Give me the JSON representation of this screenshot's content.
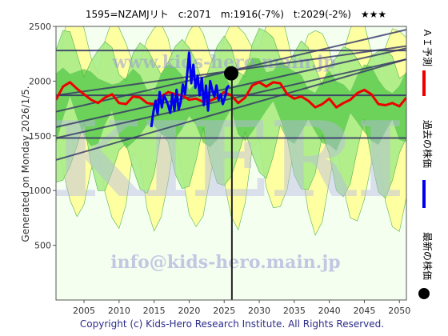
{
  "header": {
    "title": "1595=NZAMJリト　c:2071　m:1916(-7%)　t:2029(-2%)　★★★"
  },
  "side": {
    "generated": "Generated on Monday 2026/1/5."
  },
  "legend": {
    "ai_forecast": "ＡＩ予測",
    "past_price": "過去の株価",
    "latest_price": "最新の株価"
  },
  "watermark": {
    "big": "KIERI",
    "top": "www.kids-hero.main.jp",
    "bottom": "info@kids-hero.main.jp"
  },
  "footer": {
    "copyright": "Copyright (c) Kids-Hero Research Institute. All Rights Reserved."
  },
  "colors": {
    "forecast": "#ee0000",
    "past": "#0000ee",
    "green_band": "#33bb33",
    "light_green": "#aaee88",
    "yellow": "#ffff99",
    "trend_lines": "#333366",
    "plot_bg": "#e8fce0"
  },
  "chart_data": {
    "type": "line",
    "x_range": [
      2001,
      2051
    ],
    "y_range": [
      0,
      2500
    ],
    "x_ticks": [
      2005,
      2010,
      2015,
      2020,
      2025,
      2030,
      2035,
      2040,
      2045,
      2050
    ],
    "y_ticks": [
      500,
      1000,
      1500,
      2000,
      2500
    ],
    "grid": false,
    "current_marker": {
      "x": 2026.0,
      "y": 2071
    },
    "current_vline_x": 2026.1,
    "horizontal_levels": [
      1480,
      1870,
      2280
    ],
    "trend_lines": [
      {
        "x": [
          2001,
          2051
        ],
        "y": [
          1280,
          2200
        ]
      },
      {
        "x": [
          2001,
          2051
        ],
        "y": [
          1480,
          2200
        ]
      },
      {
        "x": [
          2001,
          2051
        ],
        "y": [
          1580,
          2300
        ]
      },
      {
        "x": [
          2001,
          2051
        ],
        "y": [
          1720,
          2470
        ]
      },
      {
        "x": [
          2001,
          2051
        ],
        "y": [
          1870,
          2320
        ]
      }
    ],
    "series": [
      {
        "name": "AI予測",
        "x": [
          2001,
          2002,
          2003,
          2004,
          2005,
          2006,
          2007,
          2008,
          2009,
          2010,
          2011,
          2012,
          2013,
          2014,
          2015,
          2016,
          2017,
          2018,
          2019,
          2020,
          2021,
          2022,
          2023,
          2024,
          2025,
          2026,
          2027,
          2028,
          2029,
          2030,
          2031,
          2032,
          2033,
          2034,
          2035,
          2036,
          2037,
          2038,
          2039,
          2040,
          2041,
          2042,
          2043,
          2044,
          2045,
          2046,
          2047,
          2048,
          2049,
          2050,
          2051
        ],
        "y": [
          1830,
          1950,
          1990,
          1930,
          1880,
          1830,
          1800,
          1850,
          1880,
          1800,
          1790,
          1860,
          1850,
          1800,
          1790,
          1860,
          1900,
          1880,
          1870,
          1830,
          1840,
          1810,
          1820,
          1850,
          1900,
          1870,
          1800,
          1850,
          1960,
          1990,
          1950,
          1990,
          1980,
          1880,
          1840,
          1860,
          1820,
          1760,
          1790,
          1840,
          1760,
          1800,
          1830,
          1890,
          1920,
          1880,
          1790,
          1780,
          1800,
          1770,
          1850
        ]
      },
      {
        "name": "過去の株価",
        "x": [
          2014.6,
          2014.9,
          2015.2,
          2015.5,
          2015.8,
          2016.1,
          2016.4,
          2016.7,
          2017.0,
          2017.3,
          2017.6,
          2017.9,
          2018.2,
          2018.5,
          2018.8,
          2019.1,
          2019.4,
          2019.7,
          2020.0,
          2020.3,
          2020.6,
          2020.9,
          2021.2,
          2021.5,
          2021.8,
          2022.1,
          2022.4,
          2022.7,
          2023.0,
          2023.3,
          2023.6,
          2023.9,
          2024.2,
          2024.5,
          2024.8,
          2025.1,
          2025.4,
          2025.7
        ],
        "y": [
          1580,
          1720,
          1820,
          1700,
          1900,
          1760,
          1870,
          1830,
          1780,
          1710,
          1880,
          1730,
          1920,
          1740,
          1810,
          1970,
          1880,
          2050,
          2260,
          1980,
          2150,
          1940,
          2050,
          1870,
          2030,
          1780,
          1960,
          1730,
          2000,
          1920,
          1860,
          1960,
          1830,
          1880,
          1790,
          1850,
          1940,
          1960
        ]
      }
    ]
  }
}
